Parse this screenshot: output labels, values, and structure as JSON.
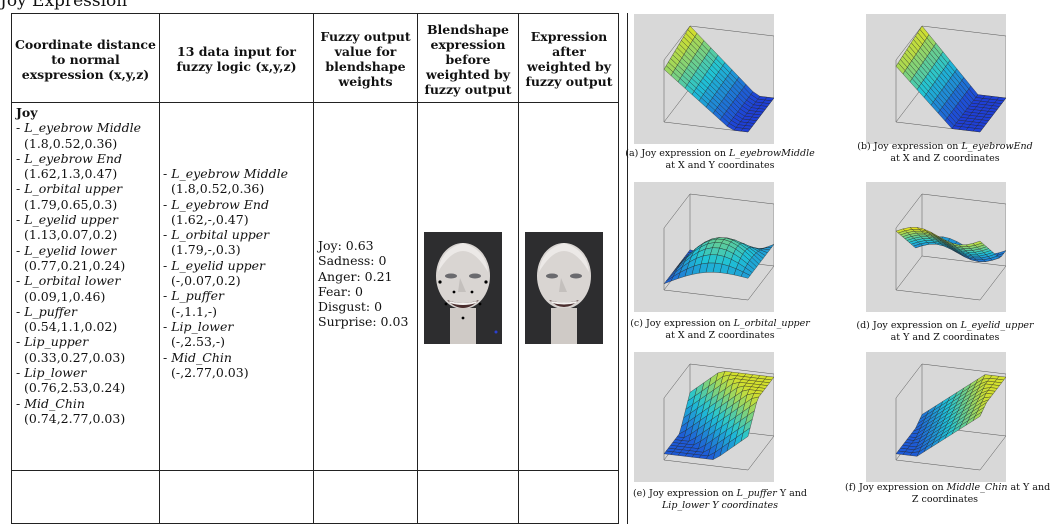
{
  "page": {
    "section_title": "Joy Expression"
  },
  "table": {
    "headers": {
      "col1": "Coordinate distance to normal exspression (x,y,z)",
      "col2": "13 data input for fuzzy logic (x,y,z)",
      "col3": "Fuzzy output value for blendshape weights",
      "col4": "Blendshape expression before weighted by fuzzy output",
      "col5": "Expression after weighted by fuzzy output"
    },
    "row": {
      "label": "Joy",
      "coordinates": [
        {
          "name": "L_eyebrow Middle",
          "value": "(1.8,0.52,0.36)"
        },
        {
          "name": "L_eyebrow End",
          "value": "(1.62,1.3,0.47)"
        },
        {
          "name": "L_orbital upper",
          "value": "(1.79,0.65,0.3)"
        },
        {
          "name": "L_eyelid upper",
          "value": "(1.13,0.07,0.2)"
        },
        {
          "name": "L_eyelid lower",
          "value": "(0.77,0.21,0.24)"
        },
        {
          "name": "L_orbital lower",
          "value": "(0.09,1,0.46)"
        },
        {
          "name": "L_puffer",
          "value": "(0.54,1.1,0.02)"
        },
        {
          "name": "Lip_upper",
          "value": "(0.33,0.27,0.03)"
        },
        {
          "name": "Lip_lower",
          "value": "(0.76,2.53,0.24)"
        },
        {
          "name": "Mid_Chin",
          "value": "(0.74,2.77,0.03)"
        }
      ],
      "fuzzy_inputs": [
        {
          "name": "L_eyebrow Middle",
          "value": "(1.8,0.52,0.36)"
        },
        {
          "name": "L_eyebrow End",
          "value": "(1.62,-,0.47)"
        },
        {
          "name": "L_orbital upper",
          "value": "(1.79,-,0.3)"
        },
        {
          "name": "L_eyelid upper",
          "value": "(-,0.07,0.2)"
        },
        {
          "name": "L_puffer",
          "value": "(-,1.1,-)"
        },
        {
          "name": "Lip_lower",
          "value": "(-,2.53,-)"
        },
        {
          "name": "Mid_Chin",
          "value": "(-,2.77,0.03)"
        }
      ],
      "outputs": [
        "Joy:  0.63",
        "Sadness: 0",
        "Anger: 0.21",
        "Fear: 0",
        "Disgust: 0",
        "Surprise: 0.03"
      ]
    }
  },
  "figures": [
    {
      "id": "a",
      "caption_l1_pre": "(a) Joy expression on ",
      "caption_l1_it": "L_eyebrowMiddle",
      "caption_l1_post": "",
      "caption_l2": "at X and Y coordinates"
    },
    {
      "id": "b",
      "caption_l1_pre": "(b) Joy expression on ",
      "caption_l1_it": "L_eyebrowEnd",
      "caption_l1_post": "",
      "caption_l2": "at X and Z coordinates"
    },
    {
      "id": "c",
      "caption_l1_pre": "(c) Joy expression on ",
      "caption_l1_it": "L_orbital_upper",
      "caption_l1_post": "",
      "caption_l2": "at X and Z coordinates"
    },
    {
      "id": "d",
      "caption_l1_pre": "(d) Joy expression on ",
      "caption_l1_it": "L_eyelid_upper",
      "caption_l1_post": "",
      "caption_l2": "at Y and Z coordinates"
    },
    {
      "id": "e",
      "caption_l1_pre": "(e) Joy expression on ",
      "caption_l1_it": "L_puffer",
      "caption_l1_post": " Y and",
      "caption_l2": "Lip_lower Y coordinates"
    },
    {
      "id": "f",
      "caption_l1_pre": "(f) Joy expression on ",
      "caption_l1_it": "Middle_Chin",
      "caption_l1_post": " at Y and",
      "caption_l2": "Z coordinates"
    }
  ],
  "colors": {
    "surface_low": "#1e3fd6",
    "surface_mid": "#1fc3d6",
    "surface_high": "#e6e21a",
    "plot_bg": "#d8d8d8",
    "rule": "#222222"
  }
}
